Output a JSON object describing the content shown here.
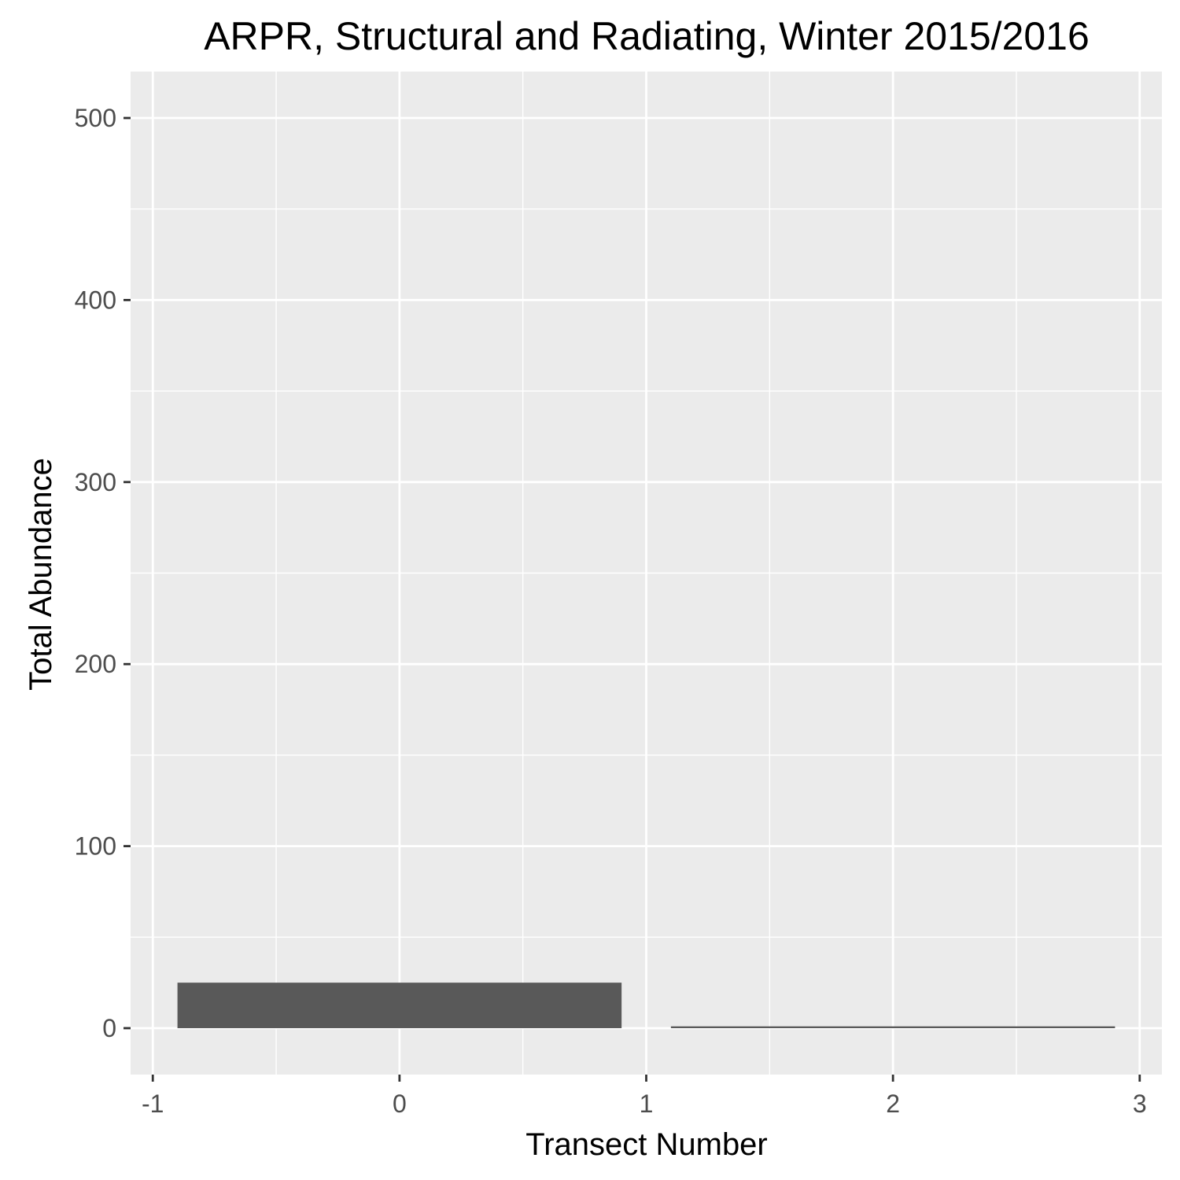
{
  "chart_data": {
    "type": "bar",
    "title": "ARPR, Structural and Radiating, Winter 2015/2016",
    "xlabel": "Transect Number",
    "ylabel": "Total Abundance",
    "xlim": [
      -1.09,
      3.09
    ],
    "ylim": [
      -25.5,
      525.5
    ],
    "x_ticks": [
      -1,
      0,
      1,
      2,
      3
    ],
    "x_tick_labels": [
      "-1",
      "0",
      "1",
      "2",
      "3"
    ],
    "y_ticks": [
      0,
      100,
      200,
      300,
      400,
      500
    ],
    "y_tick_labels": [
      "0",
      "100",
      "200",
      "300",
      "400",
      "500"
    ],
    "x_minor_ticks": [
      -0.5,
      0.5,
      1.5,
      2.5
    ],
    "y_minor_ticks": [
      50,
      150,
      250,
      350,
      450
    ],
    "bar_width": 1.8,
    "x": [
      0,
      2
    ],
    "values": [
      25,
      1
    ],
    "grid": true,
    "colors": {
      "panel_background": "#ebebeb",
      "grid": "#ffffff",
      "bar_fill": "#595959",
      "tick_text": "#4d4d4d",
      "tick_mark": "#333333"
    }
  }
}
